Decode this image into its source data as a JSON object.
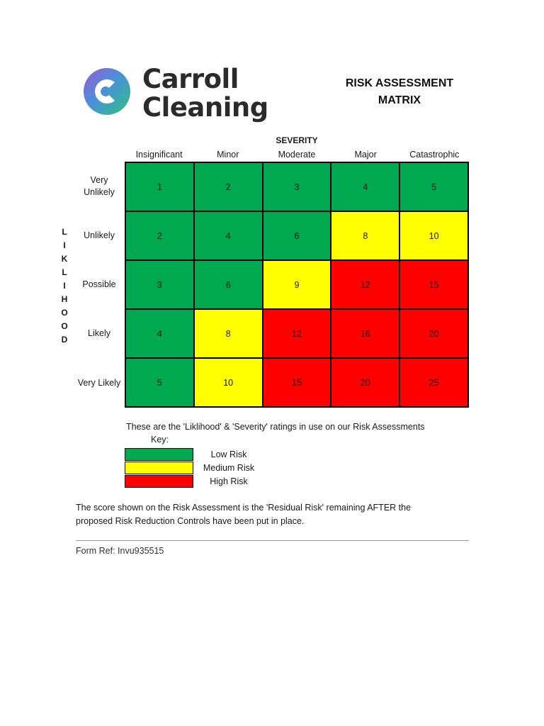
{
  "logo": {
    "line1": "Carroll",
    "line2": "Cleaning"
  },
  "title": {
    "line1": "RISK ASSESSMENT",
    "line2": "MATRIX"
  },
  "severity": {
    "title": "SEVERITY",
    "columns": [
      "Insignificant",
      "Minor",
      "Moderate",
      "Major",
      "Catastrophic"
    ]
  },
  "likelihood": {
    "vertical_label": "LIKLIHOOD",
    "rows": [
      {
        "line1": "Very",
        "line2": "Unlikely"
      },
      {
        "line1": "Unlikely",
        "line2": ""
      },
      {
        "line1": "Possible",
        "line2": ""
      },
      {
        "line1": "Likely",
        "line2": ""
      },
      {
        "line1": "Very Likely",
        "line2": ""
      }
    ]
  },
  "matrix": {
    "values": [
      [
        "1",
        "2",
        "3",
        "4",
        "5"
      ],
      [
        "2",
        "4",
        "6",
        "8",
        "10"
      ],
      [
        "3",
        "6",
        "9",
        "12",
        "15"
      ],
      [
        "4",
        "8",
        "12",
        "16",
        "20"
      ],
      [
        "5",
        "10",
        "15",
        "20",
        "25"
      ]
    ],
    "levels": [
      [
        "g",
        "g",
        "g",
        "g",
        "g"
      ],
      [
        "g",
        "g",
        "g",
        "y",
        "y"
      ],
      [
        "g",
        "g",
        "y",
        "r",
        "r"
      ],
      [
        "g",
        "y",
        "r",
        "r",
        "r"
      ],
      [
        "g",
        "y",
        "r",
        "r",
        "r"
      ]
    ]
  },
  "colors": {
    "low": "#00a84f",
    "medium": "#ffff00",
    "high": "#ff0000"
  },
  "ratings_note": "These are the 'Liklihood' & 'Severity' ratings in use on our Risk Assessments",
  "key": {
    "label": "Key:",
    "items": [
      {
        "level": "g",
        "label": "Low Risk"
      },
      {
        "level": "y",
        "label": "Medium Risk"
      },
      {
        "level": "r",
        "label": "High Risk"
      }
    ]
  },
  "residual": {
    "line1": "The score shown on the Risk Assessment is the 'Residual Risk' remaining AFTER the",
    "line2": "proposed Risk Reduction Controls have been put in place."
  },
  "form_ref": "Form Ref: Invu935515"
}
